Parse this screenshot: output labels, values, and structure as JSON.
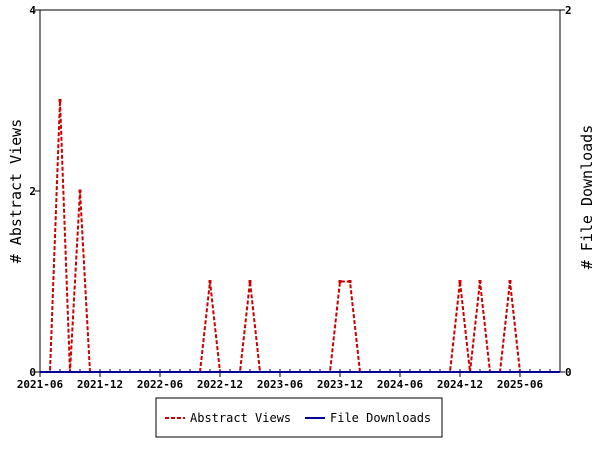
{
  "chart_data": {
    "type": "line",
    "x_axis": {
      "ticks": [
        "2021-06",
        "2021-12",
        "2022-06",
        "2022-12",
        "2023-06",
        "2023-12",
        "2024-06",
        "2024-12",
        "2025-06"
      ],
      "range_months": [
        0,
        52
      ]
    },
    "y_left": {
      "label": "# Abstract Views",
      "min": 0,
      "max": 4,
      "ticks": [
        "0",
        "2",
        "4"
      ]
    },
    "y_right": {
      "label": "# File Downloads",
      "min": 0,
      "max": 2,
      "ticks": [
        "0",
        "2"
      ]
    },
    "legend": {
      "position": "bottom"
    },
    "series": [
      {
        "name": "Abstract Views",
        "color": "#cc0000",
        "dash": "dashed",
        "axis": "left",
        "points": [
          [
            0,
            0
          ],
          [
            1,
            0
          ],
          [
            2,
            3
          ],
          [
            3,
            0
          ],
          [
            4,
            2
          ],
          [
            5,
            0
          ],
          [
            6,
            0
          ],
          [
            7,
            0
          ],
          [
            8,
            0
          ],
          [
            9,
            0
          ],
          [
            10,
            0
          ],
          [
            11,
            0
          ],
          [
            12,
            0
          ],
          [
            13,
            0
          ],
          [
            14,
            0
          ],
          [
            15,
            0
          ],
          [
            16,
            0
          ],
          [
            17,
            1
          ],
          [
            18,
            0
          ],
          [
            19,
            0
          ],
          [
            20,
            0
          ],
          [
            21,
            1
          ],
          [
            22,
            0
          ],
          [
            23,
            0
          ],
          [
            24,
            0
          ],
          [
            25,
            0
          ],
          [
            26,
            0
          ],
          [
            27,
            0
          ],
          [
            28,
            0
          ],
          [
            29,
            0
          ],
          [
            30,
            1
          ],
          [
            31,
            1
          ],
          [
            32,
            0
          ],
          [
            33,
            0
          ],
          [
            34,
            0
          ],
          [
            35,
            0
          ],
          [
            36,
            0
          ],
          [
            37,
            0
          ],
          [
            38,
            0
          ],
          [
            39,
            0
          ],
          [
            40,
            0
          ],
          [
            41,
            0
          ],
          [
            42,
            1
          ],
          [
            43,
            0
          ],
          [
            44,
            1
          ],
          [
            45,
            0
          ],
          [
            46,
            0
          ],
          [
            47,
            1
          ],
          [
            48,
            0
          ],
          [
            49,
            0
          ],
          [
            50,
            0
          ],
          [
            51,
            0
          ],
          [
            52,
            0
          ]
        ]
      },
      {
        "name": "File Downloads",
        "color": "#000099",
        "dash": "solid",
        "axis": "right",
        "points": [
          [
            0,
            0
          ],
          [
            52,
            0
          ]
        ]
      }
    ]
  }
}
